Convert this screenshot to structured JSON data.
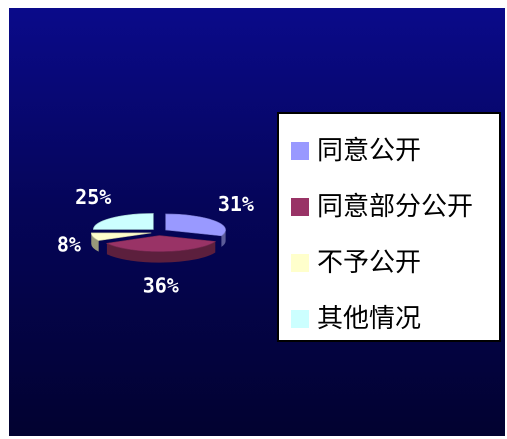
{
  "chart_data": {
    "type": "pie",
    "title": "",
    "legend_position": "right",
    "categories": [
      "同意公开",
      "同意部分公开",
      "不予公开",
      "其他情况"
    ],
    "values": [
      31,
      36,
      8,
      25
    ],
    "labels": [
      "31%",
      "36%",
      "8%",
      "25%"
    ],
    "colors": [
      "#9999ff",
      "#993366",
      "#ffffcc",
      "#ccffff"
    ],
    "exploded": true,
    "three_d": true
  },
  "legend": {
    "items": [
      {
        "label": "同意公开",
        "color": "#9999ff"
      },
      {
        "label": "同意部分公开",
        "color": "#993366"
      },
      {
        "label": "不予公开",
        "color": "#ffffcc"
      },
      {
        "label": "其他情况",
        "color": "#ccffff"
      }
    ]
  }
}
